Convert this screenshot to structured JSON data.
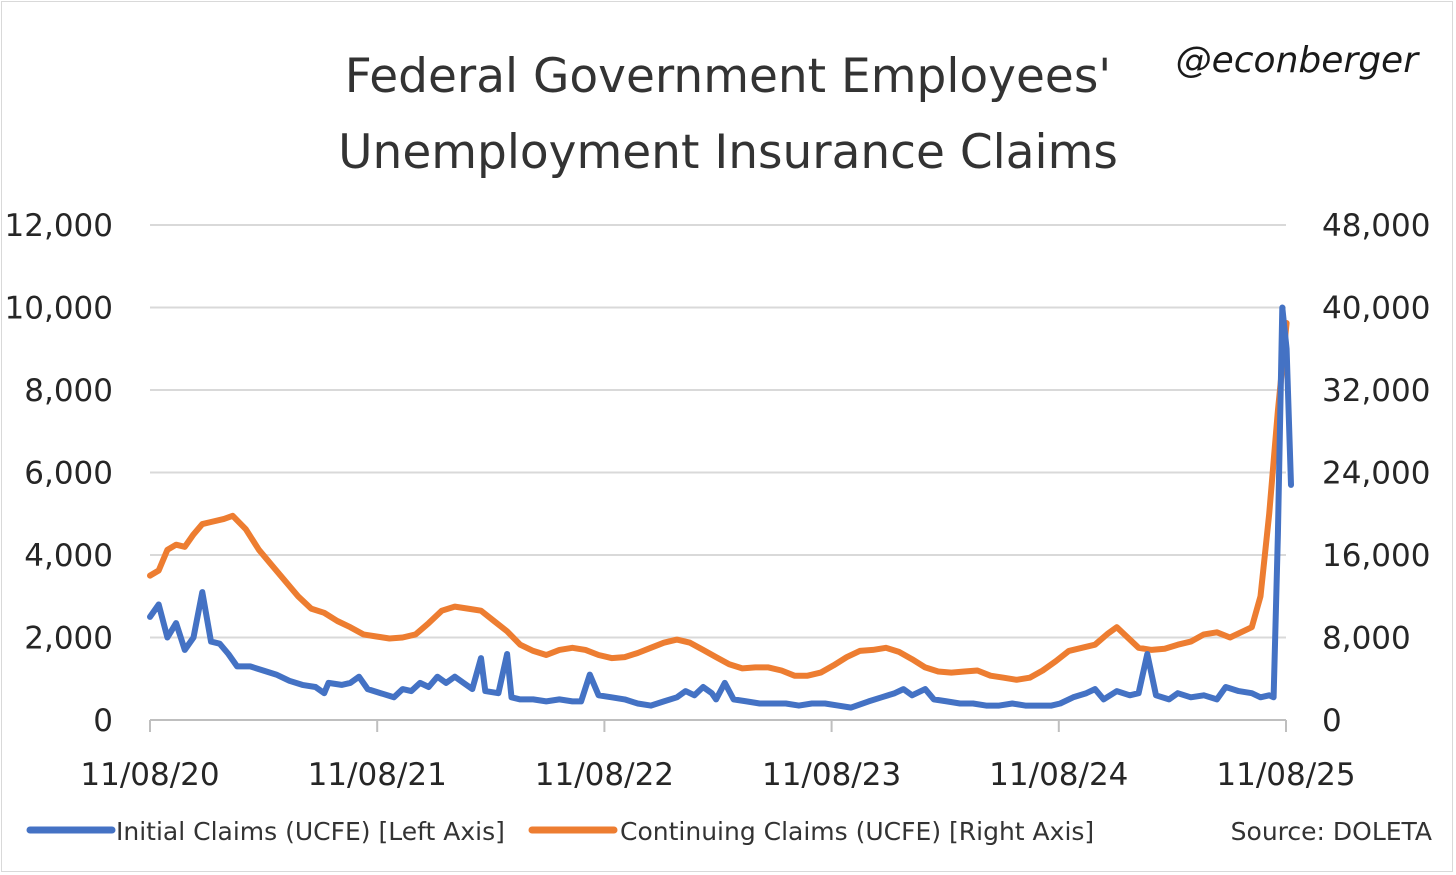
{
  "chart_data": {
    "type": "line",
    "title": [
      "Federal Government Employees'",
      "Unemployment Insurance Claims"
    ],
    "handle": "@econberger",
    "source": "Source: DOLETA",
    "x_tick_labels": [
      "11/08/20",
      "11/08/21",
      "11/08/22",
      "11/08/23",
      "11/08/24",
      "11/08/25"
    ],
    "x_range": [
      "2020-11-08",
      "2025-11-08"
    ],
    "y_left": {
      "ylim": [
        0,
        12000
      ],
      "ticks": [
        0,
        2000,
        4000,
        6000,
        8000,
        10000,
        12000
      ],
      "tick_labels": [
        "0",
        "2,000",
        "4,000",
        "6,000",
        "8,000",
        "10,000",
        "12,000"
      ]
    },
    "y_right": {
      "ylim": [
        0,
        48000
      ],
      "ticks": [
        0,
        8000,
        16000,
        24000,
        32000,
        40000,
        48000
      ],
      "tick_labels": [
        "0",
        "8,000",
        "16,000",
        "24,000",
        "32,000",
        "40,000",
        "48,000"
      ]
    },
    "grid": true,
    "legend_position": "bottom",
    "series": [
      {
        "name": "Initial Claims (UCFE) [Left Axis]",
        "axis": "left",
        "color": "#4472C4",
        "points": [
          [
            "2020-11-08",
            2500
          ],
          [
            "2020-11-22",
            2800
          ],
          [
            "2020-12-06",
            2000
          ],
          [
            "2020-12-20",
            2350
          ],
          [
            "2021-01-03",
            1700
          ],
          [
            "2021-01-17",
            2000
          ],
          [
            "2021-01-31",
            3100
          ],
          [
            "2021-02-14",
            1900
          ],
          [
            "2021-02-28",
            1850
          ],
          [
            "2021-03-14",
            1600
          ],
          [
            "2021-03-28",
            1300
          ],
          [
            "2021-04-18",
            1300
          ],
          [
            "2021-05-09",
            1200
          ],
          [
            "2021-05-30",
            1100
          ],
          [
            "2021-06-20",
            950
          ],
          [
            "2021-07-11",
            850
          ],
          [
            "2021-08-01",
            800
          ],
          [
            "2021-08-15",
            650
          ],
          [
            "2021-08-22",
            900
          ],
          [
            "2021-09-12",
            850
          ],
          [
            "2021-09-26",
            900
          ],
          [
            "2021-10-10",
            1050
          ],
          [
            "2021-10-24",
            750
          ],
          [
            "2021-11-14",
            650
          ],
          [
            "2021-12-05",
            550
          ],
          [
            "2021-12-19",
            750
          ],
          [
            "2022-01-02",
            700
          ],
          [
            "2022-01-16",
            900
          ],
          [
            "2022-01-30",
            800
          ],
          [
            "2022-02-13",
            1050
          ],
          [
            "2022-02-27",
            900
          ],
          [
            "2022-03-13",
            1050
          ],
          [
            "2022-03-27",
            900
          ],
          [
            "2022-04-10",
            750
          ],
          [
            "2022-04-24",
            1500
          ],
          [
            "2022-05-01",
            700
          ],
          [
            "2022-05-22",
            650
          ],
          [
            "2022-06-05",
            1600
          ],
          [
            "2022-06-12",
            550
          ],
          [
            "2022-06-26",
            500
          ],
          [
            "2022-07-17",
            500
          ],
          [
            "2022-08-07",
            450
          ],
          [
            "2022-08-28",
            500
          ],
          [
            "2022-09-18",
            450
          ],
          [
            "2022-10-02",
            450
          ],
          [
            "2022-10-16",
            1100
          ],
          [
            "2022-10-30",
            600
          ],
          [
            "2022-11-20",
            550
          ],
          [
            "2022-12-11",
            500
          ],
          [
            "2023-01-01",
            400
          ],
          [
            "2023-01-22",
            350
          ],
          [
            "2023-02-12",
            450
          ],
          [
            "2023-03-05",
            550
          ],
          [
            "2023-03-19",
            700
          ],
          [
            "2023-04-02",
            600
          ],
          [
            "2023-04-16",
            800
          ],
          [
            "2023-04-30",
            650
          ],
          [
            "2023-05-07",
            500
          ],
          [
            "2023-05-21",
            900
          ],
          [
            "2023-06-04",
            500
          ],
          [
            "2023-06-25",
            450
          ],
          [
            "2023-07-16",
            400
          ],
          [
            "2023-08-06",
            400
          ],
          [
            "2023-08-27",
            400
          ],
          [
            "2023-09-17",
            350
          ],
          [
            "2023-10-08",
            400
          ],
          [
            "2023-10-29",
            400
          ],
          [
            "2023-11-19",
            350
          ],
          [
            "2023-12-10",
            300
          ],
          [
            "2024-01-07",
            450
          ],
          [
            "2024-01-28",
            550
          ],
          [
            "2024-02-18",
            650
          ],
          [
            "2024-03-03",
            750
          ],
          [
            "2024-03-17",
            600
          ],
          [
            "2024-04-07",
            750
          ],
          [
            "2024-04-21",
            500
          ],
          [
            "2024-05-12",
            450
          ],
          [
            "2024-06-02",
            400
          ],
          [
            "2024-06-23",
            400
          ],
          [
            "2024-07-14",
            350
          ],
          [
            "2024-08-04",
            350
          ],
          [
            "2024-08-25",
            400
          ],
          [
            "2024-09-15",
            350
          ],
          [
            "2024-10-06",
            350
          ],
          [
            "2024-10-27",
            350
          ],
          [
            "2024-11-10",
            400
          ],
          [
            "2024-12-01",
            550
          ],
          [
            "2024-12-22",
            650
          ],
          [
            "2025-01-05",
            750
          ],
          [
            "2025-01-19",
            500
          ],
          [
            "2025-02-09",
            700
          ],
          [
            "2025-03-02",
            600
          ],
          [
            "2025-03-16",
            650
          ],
          [
            "2025-03-30",
            1600
          ],
          [
            "2025-04-13",
            600
          ],
          [
            "2025-05-04",
            500
          ],
          [
            "2025-05-18",
            650
          ],
          [
            "2025-06-08",
            550
          ],
          [
            "2025-06-29",
            600
          ],
          [
            "2025-07-20",
            500
          ],
          [
            "2025-08-03",
            800
          ],
          [
            "2025-08-24",
            700
          ],
          [
            "2025-09-14",
            650
          ],
          [
            "2025-09-28",
            550
          ],
          [
            "2025-10-12",
            600
          ],
          [
            "2025-10-19",
            550
          ],
          [
            "2025-10-26",
            4500
          ],
          [
            "2025-11-02",
            10000
          ],
          [
            "2025-11-09",
            9000
          ],
          [
            "2025-11-16",
            5700
          ]
        ]
      },
      {
        "name": "Continuing Claims (UCFE) [Right Axis]",
        "axis": "right",
        "color": "#ED7D31",
        "points": [
          [
            "2020-11-08",
            14000
          ],
          [
            "2020-11-22",
            14500
          ],
          [
            "2020-12-06",
            16500
          ],
          [
            "2020-12-20",
            17000
          ],
          [
            "2021-01-03",
            16800
          ],
          [
            "2021-01-17",
            18000
          ],
          [
            "2021-01-31",
            19000
          ],
          [
            "2021-02-14",
            19200
          ],
          [
            "2021-03-07",
            19500
          ],
          [
            "2021-03-21",
            19800
          ],
          [
            "2021-04-11",
            18500
          ],
          [
            "2021-05-02",
            16500
          ],
          [
            "2021-05-23",
            15000
          ],
          [
            "2021-06-13",
            13500
          ],
          [
            "2021-07-04",
            12000
          ],
          [
            "2021-07-25",
            10800
          ],
          [
            "2021-08-15",
            10400
          ],
          [
            "2021-09-05",
            9600
          ],
          [
            "2021-09-26",
            9000
          ],
          [
            "2021-10-17",
            8300
          ],
          [
            "2021-11-07",
            8100
          ],
          [
            "2021-11-28",
            7900
          ],
          [
            "2021-12-19",
            8000
          ],
          [
            "2022-01-09",
            8300
          ],
          [
            "2022-01-30",
            9400
          ],
          [
            "2022-02-20",
            10600
          ],
          [
            "2022-03-13",
            11000
          ],
          [
            "2022-04-03",
            10800
          ],
          [
            "2022-04-24",
            10600
          ],
          [
            "2022-05-15",
            9600
          ],
          [
            "2022-06-05",
            8600
          ],
          [
            "2022-06-26",
            7300
          ],
          [
            "2022-07-17",
            6700
          ],
          [
            "2022-08-07",
            6300
          ],
          [
            "2022-08-28",
            6800
          ],
          [
            "2022-09-18",
            7000
          ],
          [
            "2022-10-09",
            6800
          ],
          [
            "2022-10-30",
            6300
          ],
          [
            "2022-11-20",
            6000
          ],
          [
            "2022-12-11",
            6100
          ],
          [
            "2023-01-01",
            6500
          ],
          [
            "2023-01-22",
            7000
          ],
          [
            "2023-02-12",
            7500
          ],
          [
            "2023-03-05",
            7800
          ],
          [
            "2023-03-26",
            7500
          ],
          [
            "2023-04-16",
            6800
          ],
          [
            "2023-05-07",
            6100
          ],
          [
            "2023-05-28",
            5400
          ],
          [
            "2023-06-18",
            5000
          ],
          [
            "2023-07-09",
            5100
          ],
          [
            "2023-07-30",
            5100
          ],
          [
            "2023-08-20",
            4800
          ],
          [
            "2023-09-10",
            4300
          ],
          [
            "2023-10-01",
            4300
          ],
          [
            "2023-10-22",
            4600
          ],
          [
            "2023-11-12",
            5300
          ],
          [
            "2023-12-03",
            6100
          ],
          [
            "2023-12-24",
            6700
          ],
          [
            "2024-01-14",
            6800
          ],
          [
            "2024-02-04",
            7000
          ],
          [
            "2024-02-25",
            6600
          ],
          [
            "2024-03-17",
            5900
          ],
          [
            "2024-04-07",
            5100
          ],
          [
            "2024-04-28",
            4700
          ],
          [
            "2024-05-19",
            4600
          ],
          [
            "2024-06-09",
            4700
          ],
          [
            "2024-06-30",
            4800
          ],
          [
            "2024-07-21",
            4300
          ],
          [
            "2024-08-11",
            4100
          ],
          [
            "2024-09-01",
            3900
          ],
          [
            "2024-09-22",
            4100
          ],
          [
            "2024-10-13",
            4800
          ],
          [
            "2024-11-03",
            5700
          ],
          [
            "2024-11-24",
            6700
          ],
          [
            "2024-12-15",
            7000
          ],
          [
            "2025-01-05",
            7300
          ],
          [
            "2025-01-26",
            8400
          ],
          [
            "2025-02-09",
            9000
          ],
          [
            "2025-02-23",
            8200
          ],
          [
            "2025-03-16",
            7000
          ],
          [
            "2025-04-06",
            6800
          ],
          [
            "2025-04-27",
            6900
          ],
          [
            "2025-05-18",
            7300
          ],
          [
            "2025-06-08",
            7600
          ],
          [
            "2025-06-29",
            8300
          ],
          [
            "2025-07-20",
            8500
          ],
          [
            "2025-08-10",
            8000
          ],
          [
            "2025-08-31",
            8600
          ],
          [
            "2025-09-14",
            9000
          ],
          [
            "2025-09-28",
            12000
          ],
          [
            "2025-10-12",
            20000
          ],
          [
            "2025-10-26",
            30000
          ],
          [
            "2025-11-09",
            38500
          ]
        ]
      }
    ]
  }
}
